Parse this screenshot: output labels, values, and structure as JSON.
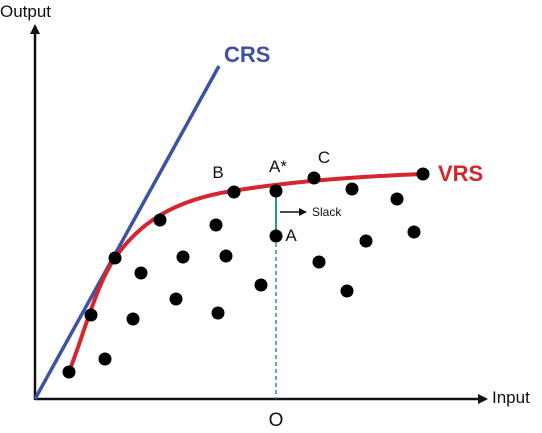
{
  "axes": {
    "y_title": "Output",
    "x_title": "Input",
    "origin_tick": "O"
  },
  "frontiers": {
    "crs_label": "CRS",
    "vrs_label": "VRS",
    "crs_color": "#3F51A3",
    "vrs_color": "#D32630"
  },
  "point_labels": {
    "b": "B",
    "a_star": "A*",
    "c": "C",
    "a": "A"
  },
  "slack": {
    "label": "Slack",
    "line_color": "#2A8FA8"
  },
  "colors": {
    "axis": "#111111",
    "point": "#000000"
  }
}
